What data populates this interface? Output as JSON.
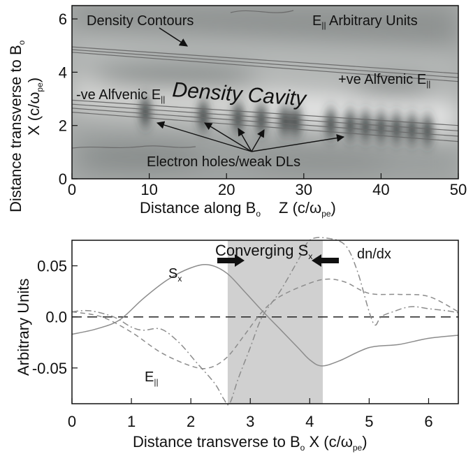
{
  "chart_data": [
    {
      "type": "heatmap",
      "xlabel": "Distance along B",
      "xlabel_sub": "o",
      "xlabel_unit": "Z (c/ω",
      "xlabel_unit_sub": "pe",
      "xlabel_unit_end": ")",
      "ylabel": "Distance transverse to B",
      "ylabel_sub": "o",
      "ylabel2": "X (c/ω",
      "ylabel2_sub": "pe",
      "ylabel2_end": ")",
      "xlim": [
        0,
        50
      ],
      "ylim": [
        0,
        6.5
      ],
      "xticks": [
        "0",
        "10",
        "20",
        "30",
        "40",
        "50"
      ],
      "yticks": [
        "0",
        "2",
        "4",
        "6"
      ],
      "annotations": {
        "contours": "Density Contours",
        "e_par": "E",
        "e_par_sub": "||",
        "e_par_rest": " Arbitrary Units",
        "cavity": "Density Cavity",
        "neg_alfven": "-ve Alfvenic E",
        "neg_alfven_sub": "||",
        "pos_alfven": "+ve Alfvenic E",
        "pos_alfven_sub": "||",
        "holes": "Electron holes/weak DLs"
      },
      "hole_positions_z": [
        9.5,
        17,
        21.5,
        24.5,
        27.5,
        29,
        33.5,
        36,
        38,
        40,
        42,
        44,
        46
      ],
      "contour_lines": [
        {
          "z": [
            0,
            50
          ],
          "x": [
            4.95,
            3.95
          ]
        },
        {
          "z": [
            0,
            50
          ],
          "x": [
            4.85,
            3.8
          ]
        },
        {
          "z": [
            0,
            50
          ],
          "x": [
            4.75,
            3.65
          ]
        },
        {
          "z": [
            0,
            50
          ],
          "x": [
            2.95,
            2.0
          ]
        },
        {
          "z": [
            0,
            50
          ],
          "x": [
            2.8,
            1.8
          ]
        },
        {
          "z": [
            0,
            50
          ],
          "x": [
            2.65,
            1.6
          ]
        },
        {
          "z": [
            0,
            50
          ],
          "x": [
            2.5,
            1.4
          ]
        }
      ],
      "colors": {
        "dark": "#2f3436",
        "light": "#ededed",
        "contour": "#6b6b6b"
      }
    },
    {
      "type": "line",
      "title": "Converging S",
      "title_sub": "x",
      "xlabel": "Distance transverse to B",
      "xlabel_sub": "o",
      "xlabel_unit": " X (c/ω",
      "xlabel_unit_sub": "pe",
      "xlabel_unit_end": ")",
      "ylabel": "Arbitrary Units",
      "xlim": [
        0,
        6.5
      ],
      "ylim": [
        -0.085,
        0.075
      ],
      "xticks": [
        0,
        1,
        2,
        3,
        4,
        5,
        6
      ],
      "yticks": [
        0.05,
        0.0,
        -0.05
      ],
      "ytick_labels": [
        "0.05",
        "0.0",
        "-0.05"
      ],
      "shaded_region": [
        2.62,
        4.22
      ],
      "series": [
        {
          "name": "S",
          "name_sub": "x",
          "style": "solid",
          "x": [
            0,
            0.4,
            0.8,
            1.2,
            1.6,
            2.0,
            2.3,
            2.6,
            2.9,
            3.2,
            3.5,
            3.8,
            4.0,
            4.2,
            4.5,
            5.0,
            5.5,
            6.0,
            6.5
          ],
          "y": [
            -0.017,
            -0.012,
            -0.003,
            0.018,
            0.036,
            0.048,
            0.051,
            0.043,
            0.025,
            0.006,
            -0.012,
            -0.03,
            -0.042,
            -0.048,
            -0.043,
            -0.03,
            -0.027,
            -0.021,
            -0.018
          ]
        },
        {
          "name": "E",
          "name_sub": "||",
          "style": "dashed",
          "x": [
            0,
            0.5,
            1.0,
            1.5,
            2.0,
            2.3,
            2.6,
            2.9,
            3.2,
            3.5,
            4.0,
            4.3,
            4.6,
            5.0,
            5.5,
            6.0,
            6.5
          ],
          "y": [
            0.005,
            0.0,
            -0.015,
            -0.035,
            -0.048,
            -0.05,
            -0.04,
            -0.018,
            0.005,
            0.02,
            0.033,
            0.037,
            0.034,
            0.023,
            0.022,
            0.02,
            0.005
          ]
        },
        {
          "name": "dn/dx",
          "style": "dashdot",
          "x": [
            0,
            0.3,
            0.7,
            1.0,
            1.2,
            1.5,
            1.8,
            2.1,
            2.4,
            2.55,
            2.65,
            2.8,
            3.0,
            3.2,
            3.5,
            3.8,
            4.0,
            4.3,
            4.6,
            4.8,
            5.0,
            5.1,
            5.2,
            5.4,
            5.7,
            6.0,
            6.3,
            6.5
          ],
          "y": [
            0.005,
            0.006,
            0.0,
            -0.01,
            -0.013,
            -0.012,
            -0.025,
            -0.045,
            -0.065,
            -0.08,
            -0.085,
            -0.06,
            -0.03,
            0.0,
            0.025,
            0.055,
            0.075,
            0.077,
            0.07,
            0.045,
            0.005,
            -0.008,
            0.0,
            0.005,
            0.01,
            0.008,
            0.006,
            0.004
          ]
        }
      ],
      "colors": {
        "shade": "#d0d0d0",
        "line": "#8c8c8c",
        "zero": "#222222"
      }
    }
  ]
}
